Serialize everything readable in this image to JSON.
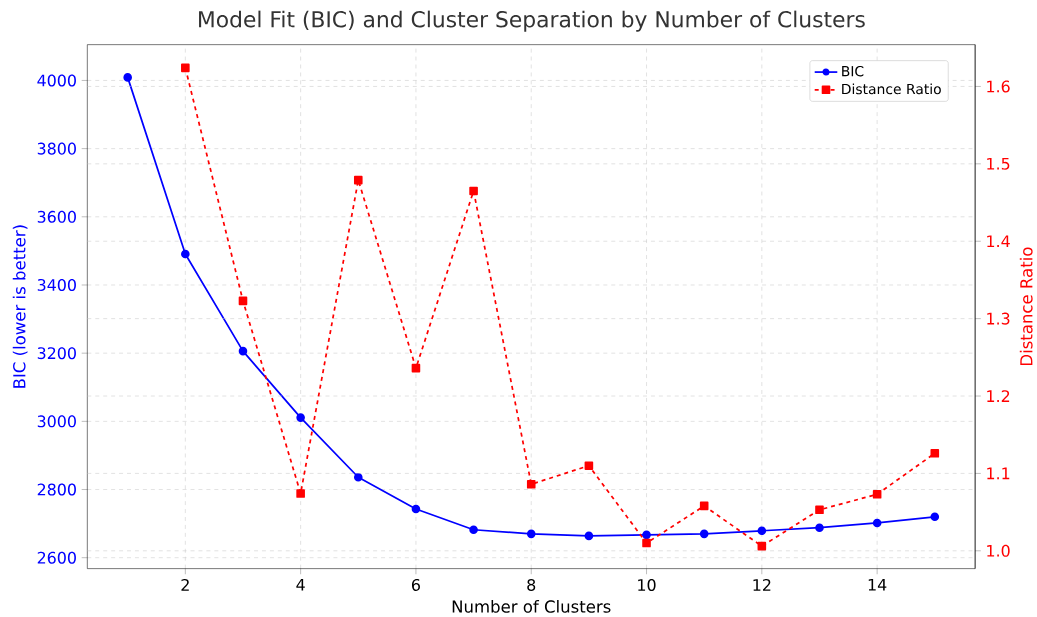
{
  "chart_data": {
    "type": "line",
    "title": "Model Fit (BIC) and Cluster Separation by Number of Clusters",
    "xlabel": "Number of Clusters",
    "ylabel": "BIC (lower is better)",
    "y2label": "Distance Ratio",
    "x": [
      1,
      2,
      3,
      4,
      5,
      6,
      7,
      8,
      9,
      10,
      11,
      12,
      13,
      14,
      15
    ],
    "series": [
      {
        "name": "BIC",
        "color": "#0000ff",
        "marker": "circle",
        "line_style": "solid",
        "values": [
          4009,
          3491,
          3206,
          3011,
          2836,
          2743,
          2682,
          2670,
          2664,
          2667,
          2670,
          2679,
          2688,
          2702,
          2720
        ]
      },
      {
        "name": "Distance Ratio",
        "color": "#ff0000",
        "marker": "square",
        "line_style": "dashed",
        "axis": "y2",
        "values": [
          null,
          1.624,
          1.323,
          1.074,
          1.479,
          1.236,
          1.465,
          1.086,
          1.11,
          1.01,
          1.058,
          1.006,
          1.053,
          1.073,
          1.126
        ]
      }
    ],
    "xlim": [
      0.3,
      15.7
    ],
    "xticks": [
      2,
      4,
      6,
      8,
      10,
      12,
      14
    ],
    "ylim": [
      2568,
      4105
    ],
    "yticks": [
      2600,
      2800,
      3000,
      3200,
      3400,
      3600,
      3800,
      4000
    ],
    "y2lim": [
      0.977,
      1.654
    ],
    "y2ticks": [
      {
        "value": 1.0,
        "label": "1.0"
      },
      {
        "value": 1.1,
        "label": "1.1"
      },
      {
        "value": 1.2,
        "label": "1.2"
      },
      {
        "value": 1.3,
        "label": "1.3"
      },
      {
        "value": 1.4,
        "label": "1.4"
      },
      {
        "value": 1.5,
        "label": "1.5"
      },
      {
        "value": 1.6,
        "label": "1.6"
      }
    ],
    "grid": true,
    "legend": "top right"
  }
}
